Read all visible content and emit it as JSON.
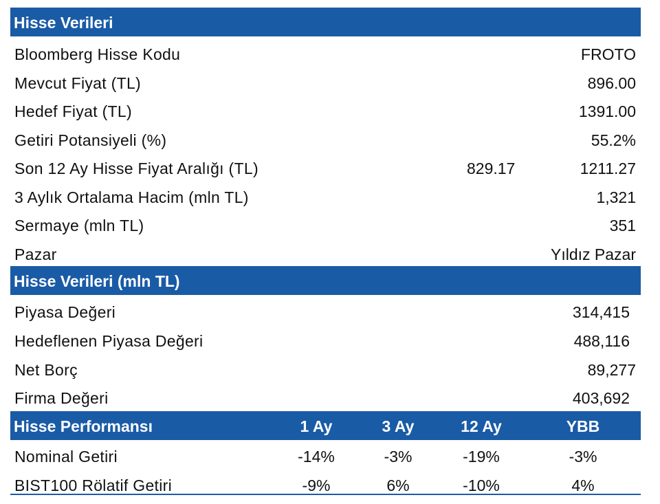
{
  "section1": {
    "title": "Hisse Verileri",
    "rows": [
      {
        "label": "Bloomberg Hisse Kodu",
        "value": "FROTO"
      },
      {
        "label": "Mevcut Fiyat (TL)",
        "value": "896.00"
      },
      {
        "label": "Hedef Fiyat (TL)",
        "value": "1391.00"
      },
      {
        "label": "Getiri Potansiyeli (%)",
        "value": "55.2%"
      },
      {
        "label": "Son 12 Ay Hisse Fiyat Aralığı (TL)",
        "low": "829.17",
        "value": "1211.27"
      },
      {
        "label": "3 Aylık Ortalama Hacim (mln TL)",
        "value": "1,321"
      },
      {
        "label": "Sermaye (mln TL)",
        "value": "351"
      },
      {
        "label": "Pazar",
        "value": "Yıldız Pazar"
      }
    ]
  },
  "section2": {
    "title": "Hisse Verileri (mln TL)",
    "rows": [
      {
        "label": "Piyasa Değeri",
        "value": "314,415"
      },
      {
        "label": "Hedeflenen Piyasa Değeri",
        "value": "488,116"
      },
      {
        "label": "Net Borç",
        "value": "89,277"
      },
      {
        "label": "Firma Değeri",
        "value": "403,692"
      }
    ]
  },
  "section3": {
    "title": "Hisse Performansı",
    "columns": [
      "1 Ay",
      "3 Ay",
      "12 Ay",
      "YBB"
    ],
    "rows": [
      {
        "label": "Nominal Getiri",
        "values": [
          "-14%",
          "-3%",
          "-19%",
          "-3%"
        ]
      },
      {
        "label": "BIST100 Rölatif Getiri",
        "values": [
          "-9%",
          "6%",
          "-10%",
          "4%"
        ]
      }
    ]
  },
  "colors": {
    "header_bg": "#1a5ba6",
    "header_text": "#ffffff"
  }
}
